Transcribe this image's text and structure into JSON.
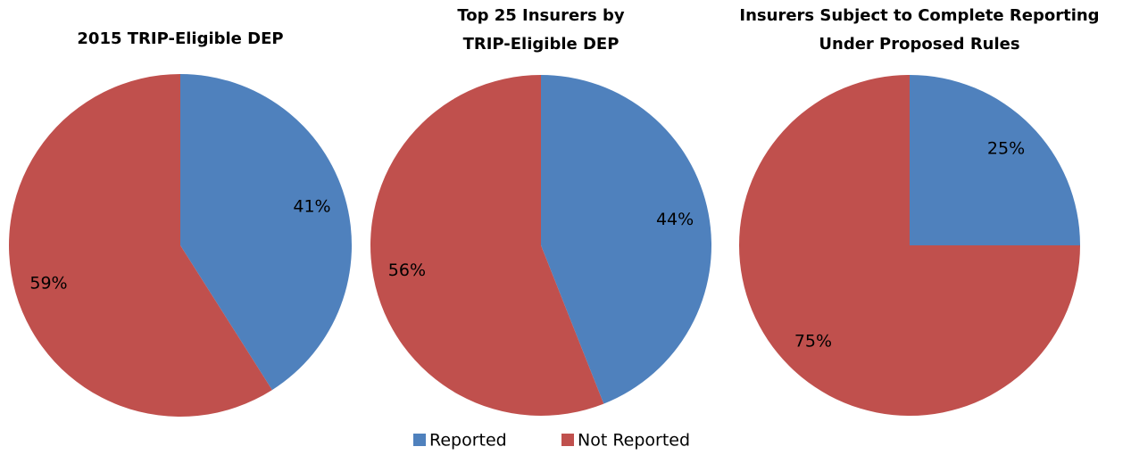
{
  "chart_data": [
    {
      "type": "pie",
      "title": "2015 TRIP-Eligible DEP",
      "categories": [
        "Reported",
        "Not Reported"
      ],
      "values": [
        41,
        59
      ],
      "value_labels": [
        "41%",
        "59%"
      ],
      "colors": [
        "#4f81bd",
        "#c0504d"
      ]
    },
    {
      "type": "pie",
      "title": "Top 25 Insurers by TRIP-Eligible DEP",
      "categories": [
        "Reported",
        "Not Reported"
      ],
      "values": [
        44,
        56
      ],
      "value_labels": [
        "44%",
        "56%"
      ],
      "colors": [
        "#4f81bd",
        "#c0504d"
      ]
    },
    {
      "type": "pie",
      "title": "Insurers Subject to Complete Reporting Under Proposed Rules",
      "categories": [
        "Reported",
        "Not Reported"
      ],
      "values": [
        25,
        75
      ],
      "value_labels": [
        "25%",
        "75%"
      ],
      "colors": [
        "#4f81bd",
        "#c0504d"
      ]
    }
  ]
}
